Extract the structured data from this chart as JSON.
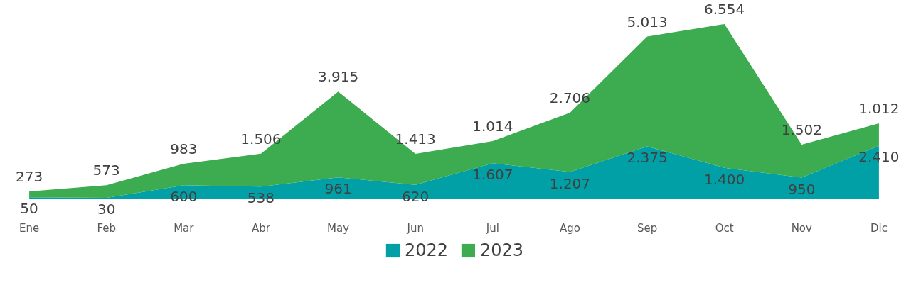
{
  "chart_data": {
    "type": "area",
    "stacked": true,
    "legend": "bottom",
    "grid": false,
    "categories": [
      "Ene",
      "Feb",
      "Mar",
      "Abr",
      "May",
      "Jun",
      "Jul",
      "Ago",
      "Sep",
      "Oct",
      "Nov",
      "Dic"
    ],
    "series": [
      {
        "name": "2022",
        "color": "#00a0a6",
        "values": [
          50,
          30,
          600,
          538,
          961,
          620,
          1607,
          1207,
          2375,
          1400,
          950,
          2410
        ],
        "value_labels": [
          "50",
          "30",
          "600",
          "538",
          "961",
          "620",
          "1.607",
          "1.207",
          "2.375",
          "1.400",
          "950",
          "2.410"
        ]
      },
      {
        "name": "2023",
        "color": "#3dab50",
        "values": [
          273,
          573,
          983,
          1506,
          3915,
          1413,
          1014,
          2706,
          5013,
          6554,
          1502,
          1012
        ],
        "value_labels": [
          "273",
          "573",
          "983",
          "1.506",
          "3.915",
          "1.413",
          "1.014",
          "2.706",
          "5.013",
          "6.554",
          "1.502",
          "1.012"
        ]
      }
    ]
  }
}
